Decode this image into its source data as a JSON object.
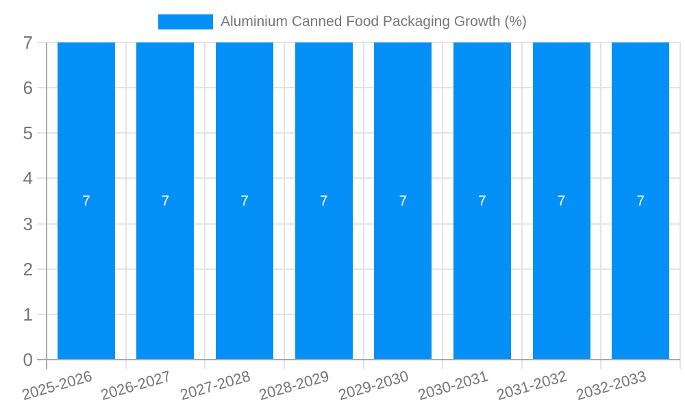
{
  "legend": {
    "label": "Aluminium Canned Food Packaging Growth (%)"
  },
  "chart_data": {
    "type": "bar",
    "title": "Aluminium Canned Food Packaging Growth (%)",
    "categories": [
      "2025-2026",
      "2026-2027",
      "2027-2028",
      "2028-2029",
      "2029-2030",
      "2030-2031",
      "2031-2032",
      "2032-2033"
    ],
    "series": [
      {
        "name": "Aluminium Canned Food Packaging Growth (%)",
        "values": [
          7,
          7,
          7,
          7,
          7,
          7,
          7,
          7
        ]
      }
    ],
    "bar_value_labels": [
      "7",
      "7",
      "7",
      "7",
      "7",
      "7",
      "7",
      "7"
    ],
    "xlabel": "",
    "ylabel": "",
    "ylim": [
      0,
      7
    ],
    "yticks": [
      0,
      1,
      2,
      3,
      4,
      5,
      6,
      7
    ],
    "grid": "on",
    "legend_position": "top-center",
    "colors": {
      "bar": "#0590f8",
      "bar_label": "#ffffff",
      "grid_line": "#e3e3e3",
      "axis_line": "#a8a8a8",
      "tick_label": "#757575",
      "legend_text": "#757575"
    }
  }
}
